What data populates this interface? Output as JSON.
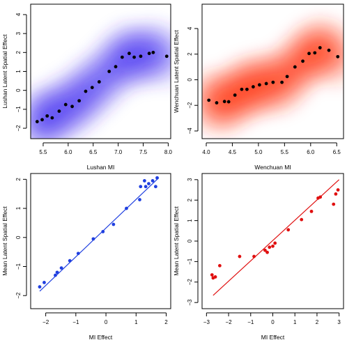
{
  "chart_data": [
    {
      "type": "scatter",
      "panel": "top-left",
      "xlabel": "Lushan MI",
      "ylabel": "Lushan Latent Spatial Effect",
      "xlim": [
        5.25,
        8.05
      ],
      "ylim": [
        -2.55,
        4.55
      ],
      "xticks": [
        5.5,
        6.0,
        6.5,
        7.0,
        7.5,
        8.0
      ],
      "yticks": [
        -2,
        -1,
        0,
        1,
        2,
        3,
        4
      ],
      "density_color": "#3f2cf2",
      "point_color": "#000000",
      "points": [
        [
          5.38,
          -1.65
        ],
        [
          5.48,
          -1.55
        ],
        [
          5.58,
          -1.35
        ],
        [
          5.68,
          -1.45
        ],
        [
          5.82,
          -1.1
        ],
        [
          5.95,
          -0.75
        ],
        [
          6.08,
          -0.85
        ],
        [
          6.22,
          -0.55
        ],
        [
          6.35,
          -0.05
        ],
        [
          6.48,
          0.15
        ],
        [
          6.62,
          0.45
        ],
        [
          6.82,
          1.0
        ],
        [
          6.95,
          1.25
        ],
        [
          7.08,
          1.75
        ],
        [
          7.22,
          1.95
        ],
        [
          7.32,
          1.75
        ],
        [
          7.45,
          1.8
        ],
        [
          7.62,
          1.95
        ],
        [
          7.7,
          2.0
        ],
        [
          7.97,
          1.8
        ]
      ]
    },
    {
      "type": "scatter",
      "panel": "top-right",
      "xlabel": "Wenchuan MI",
      "ylabel": "Wenchuan Latent Spatial Effect",
      "xlim": [
        3.92,
        6.63
      ],
      "ylim": [
        -4.6,
        5.9
      ],
      "xticks": [
        4.0,
        4.5,
        5.0,
        5.5,
        6.0,
        6.5
      ],
      "yticks": [
        -4,
        -2,
        0,
        2,
        4
      ],
      "density_color": "#ff2a0a",
      "point_color": "#000000",
      "points": [
        [
          4.05,
          -1.6
        ],
        [
          4.2,
          -1.8
        ],
        [
          4.35,
          -1.7
        ],
        [
          4.43,
          -1.72
        ],
        [
          4.55,
          -1.2
        ],
        [
          4.68,
          -0.75
        ],
        [
          4.78,
          -0.75
        ],
        [
          4.9,
          -0.55
        ],
        [
          5.02,
          -0.4
        ],
        [
          5.15,
          -0.3
        ],
        [
          5.28,
          -0.2
        ],
        [
          5.45,
          -0.2
        ],
        [
          5.55,
          0.25
        ],
        [
          5.7,
          1.0
        ],
        [
          5.85,
          1.45
        ],
        [
          5.97,
          2.05
        ],
        [
          6.08,
          2.1
        ],
        [
          6.18,
          2.5
        ],
        [
          6.35,
          2.3
        ],
        [
          6.52,
          1.8
        ]
      ]
    },
    {
      "type": "scatter",
      "panel": "bottom-left",
      "xlabel": "MI Effect",
      "ylabel": "Mean Latent Spatial Effect",
      "xlim": [
        -2.5,
        2.15
      ],
      "ylim": [
        -2.45,
        2.2
      ],
      "xticks": [
        -2,
        -1,
        0,
        1,
        2
      ],
      "yticks": [
        -2,
        -1,
        0,
        1,
        2
      ],
      "point_color": "#1f3fe0",
      "line_color": "#1f3fe0",
      "fit_line": [
        [
          -2.2,
          -1.85
        ],
        [
          1.75,
          2.05
        ]
      ],
      "points": [
        [
          -2.2,
          -1.7
        ],
        [
          -2.05,
          -1.55
        ],
        [
          -1.68,
          -1.3
        ],
        [
          -1.62,
          -1.2
        ],
        [
          -1.48,
          -1.05
        ],
        [
          -1.2,
          -0.8
        ],
        [
          -0.92,
          -0.55
        ],
        [
          -0.42,
          -0.05
        ],
        [
          -0.1,
          0.2
        ],
        [
          0.25,
          0.45
        ],
        [
          0.68,
          1.0
        ],
        [
          1.12,
          1.3
        ],
        [
          1.15,
          1.75
        ],
        [
          1.28,
          1.95
        ],
        [
          1.32,
          1.75
        ],
        [
          1.42,
          1.85
        ],
        [
          1.55,
          1.95
        ],
        [
          1.65,
          1.75
        ],
        [
          1.7,
          2.05
        ]
      ]
    },
    {
      "type": "scatter",
      "panel": "bottom-right",
      "xlabel": "MI Effect",
      "ylabel": "Mean Latent Spatial Effect",
      "xlim": [
        -3.2,
        3.2
      ],
      "ylim": [
        -3.3,
        3.3
      ],
      "xticks": [
        -3,
        -2,
        -1,
        0,
        1,
        2,
        3
      ],
      "yticks": [
        -3,
        -2,
        -1,
        0,
        1,
        2,
        3
      ],
      "point_color": "#e01010",
      "line_color": "#e01010",
      "fit_line": [
        [
          -2.7,
          -2.65
        ],
        [
          3.0,
          3.0
        ]
      ],
      "points": [
        [
          -2.75,
          -1.65
        ],
        [
          -2.7,
          -1.8
        ],
        [
          -2.6,
          -1.75
        ],
        [
          -2.4,
          -1.2
        ],
        [
          -1.5,
          -0.75
        ],
        [
          -0.85,
          -0.75
        ],
        [
          -0.35,
          -0.45
        ],
        [
          -0.25,
          -0.55
        ],
        [
          -0.15,
          -0.3
        ],
        [
          0.0,
          -0.25
        ],
        [
          0.1,
          -0.1
        ],
        [
          0.7,
          0.55
        ],
        [
          1.3,
          1.05
        ],
        [
          1.75,
          1.45
        ],
        [
          2.05,
          2.1
        ],
        [
          2.15,
          2.15
        ],
        [
          2.75,
          1.8
        ],
        [
          2.85,
          2.3
        ],
        [
          2.95,
          2.5
        ]
      ]
    }
  ]
}
